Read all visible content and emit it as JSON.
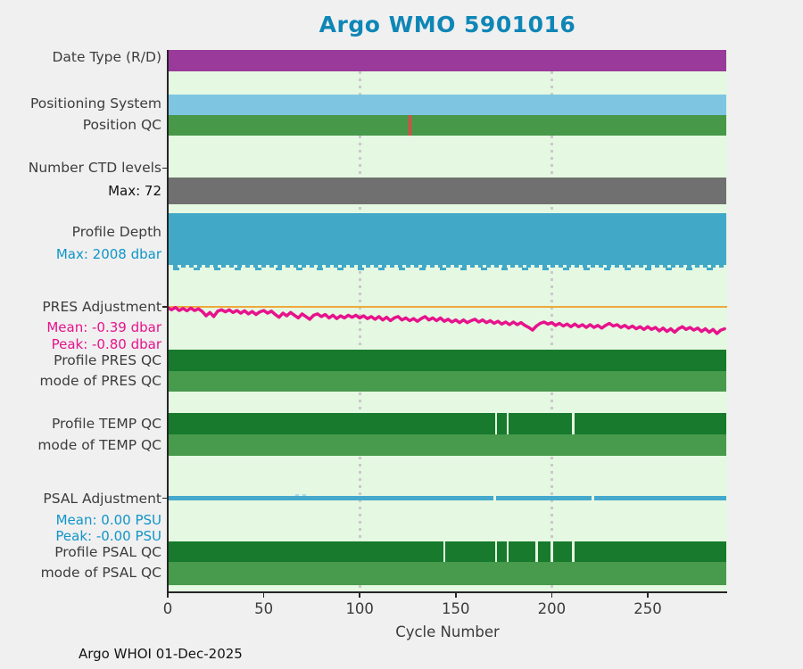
{
  "figure": {
    "title": "Argo WMO 5901016",
    "title_color": "#0e86b6",
    "footer": "Argo WHOI 01-Dec-2025",
    "background": "#f0f0f0",
    "plot_background": "#e5f8e2"
  },
  "chart_data": {
    "type": "bar",
    "subtype": "status-timeline",
    "title": "Argo WMO 5901016",
    "xlabel": "Cycle Number",
    "x_ticks": [
      0,
      50,
      100,
      150,
      200,
      250
    ],
    "x_max": 291,
    "gridlines_x": [
      100,
      200
    ],
    "gridline_color": "#c9c9c9",
    "axis_color": "#262626",
    "rows": [
      {
        "id": "date_type",
        "label": "Date Type (R/D)",
        "type": "bar",
        "color": "#9a3a9a",
        "span": [
          0,
          291
        ]
      },
      {
        "id": "positioning_system",
        "label": "Positioning System",
        "type": "bar",
        "color": "#7ec5e2",
        "span": [
          0,
          291
        ]
      },
      {
        "id": "position_qc",
        "label": "Position QC",
        "type": "bar",
        "color": "#489849",
        "span": [
          0,
          291
        ],
        "flags": [
          {
            "cycle": 126,
            "color": "#ef4049"
          }
        ]
      },
      {
        "id": "ctd_levels",
        "label": "Number CTD levels",
        "max_label": "Max: 72",
        "max_value": 72,
        "type": "bar",
        "color": "#707070",
        "span": [
          0,
          291
        ]
      },
      {
        "id": "profile_depth",
        "label": "Profile Depth",
        "max_label": "Max: 2008 dbar",
        "max_value_dbar": 2008,
        "max_label_color": "#1095c8",
        "type": "bar",
        "color": "#41a8c8",
        "span": [
          0,
          291
        ]
      },
      {
        "id": "pres_adjustment",
        "label": "PRES Adjustment",
        "mean_label": "Mean: -0.39 dbar",
        "peak_label": "Peak: -0.80 dbar",
        "mean_dbar": -0.39,
        "peak_dbar": -0.8,
        "stats_color": "#e6138c",
        "line_color": "#e6138c",
        "zero_line_color": "#efa93a",
        "type": "line",
        "series": [
          [
            0,
            -0.04
          ],
          [
            2,
            -0.1
          ],
          [
            4,
            -0.03
          ],
          [
            6,
            -0.12
          ],
          [
            8,
            -0.06
          ],
          [
            10,
            -0.13
          ],
          [
            12,
            -0.05
          ],
          [
            14,
            -0.12
          ],
          [
            16,
            -0.07
          ],
          [
            18,
            -0.15
          ],
          [
            20,
            -0.28
          ],
          [
            22,
            -0.18
          ],
          [
            24,
            -0.3
          ],
          [
            26,
            -0.14
          ],
          [
            28,
            -0.1
          ],
          [
            30,
            -0.16
          ],
          [
            32,
            -0.1
          ],
          [
            34,
            -0.18
          ],
          [
            36,
            -0.12
          ],
          [
            38,
            -0.2
          ],
          [
            40,
            -0.13
          ],
          [
            42,
            -0.22
          ],
          [
            44,
            -0.15
          ],
          [
            46,
            -0.24
          ],
          [
            48,
            -0.16
          ],
          [
            50,
            -0.12
          ],
          [
            52,
            -0.2
          ],
          [
            54,
            -0.14
          ],
          [
            56,
            -0.24
          ],
          [
            58,
            -0.32
          ],
          [
            60,
            -0.2
          ],
          [
            62,
            -0.28
          ],
          [
            64,
            -0.18
          ],
          [
            66,
            -0.26
          ],
          [
            68,
            -0.34
          ],
          [
            70,
            -0.22
          ],
          [
            72,
            -0.3
          ],
          [
            74,
            -0.38
          ],
          [
            76,
            -0.26
          ],
          [
            78,
            -0.22
          ],
          [
            80,
            -0.3
          ],
          [
            82,
            -0.24
          ],
          [
            84,
            -0.34
          ],
          [
            86,
            -0.26
          ],
          [
            88,
            -0.36
          ],
          [
            90,
            -0.28
          ],
          [
            92,
            -0.34
          ],
          [
            94,
            -0.26
          ],
          [
            96,
            -0.32
          ],
          [
            98,
            -0.26
          ],
          [
            100,
            -0.34
          ],
          [
            102,
            -0.28
          ],
          [
            104,
            -0.36
          ],
          [
            106,
            -0.3
          ],
          [
            108,
            -0.38
          ],
          [
            110,
            -0.3
          ],
          [
            112,
            -0.4
          ],
          [
            114,
            -0.32
          ],
          [
            116,
            -0.42
          ],
          [
            118,
            -0.34
          ],
          [
            120,
            -0.3
          ],
          [
            122,
            -0.4
          ],
          [
            124,
            -0.34
          ],
          [
            126,
            -0.42
          ],
          [
            128,
            -0.36
          ],
          [
            130,
            -0.44
          ],
          [
            132,
            -0.36
          ],
          [
            134,
            -0.3
          ],
          [
            136,
            -0.4
          ],
          [
            138,
            -0.34
          ],
          [
            140,
            -0.42
          ],
          [
            142,
            -0.34
          ],
          [
            144,
            -0.44
          ],
          [
            146,
            -0.38
          ],
          [
            148,
            -0.46
          ],
          [
            150,
            -0.4
          ],
          [
            152,
            -0.48
          ],
          [
            154,
            -0.4
          ],
          [
            156,
            -0.48
          ],
          [
            158,
            -0.42
          ],
          [
            160,
            -0.38
          ],
          [
            162,
            -0.46
          ],
          [
            164,
            -0.4
          ],
          [
            166,
            -0.48
          ],
          [
            168,
            -0.42
          ],
          [
            170,
            -0.5
          ],
          [
            172,
            -0.44
          ],
          [
            174,
            -0.52
          ],
          [
            176,
            -0.46
          ],
          [
            178,
            -0.54
          ],
          [
            180,
            -0.46
          ],
          [
            182,
            -0.54
          ],
          [
            184,
            -0.48
          ],
          [
            186,
            -0.56
          ],
          [
            188,
            -0.62
          ],
          [
            190,
            -0.7
          ],
          [
            192,
            -0.58
          ],
          [
            194,
            -0.5
          ],
          [
            196,
            -0.46
          ],
          [
            198,
            -0.52
          ],
          [
            200,
            -0.48
          ],
          [
            202,
            -0.56
          ],
          [
            204,
            -0.5
          ],
          [
            206,
            -0.58
          ],
          [
            208,
            -0.52
          ],
          [
            210,
            -0.6
          ],
          [
            212,
            -0.52
          ],
          [
            214,
            -0.6
          ],
          [
            216,
            -0.54
          ],
          [
            218,
            -0.62
          ],
          [
            220,
            -0.54
          ],
          [
            222,
            -0.62
          ],
          [
            224,
            -0.56
          ],
          [
            226,
            -0.64
          ],
          [
            228,
            -0.56
          ],
          [
            230,
            -0.5
          ],
          [
            232,
            -0.58
          ],
          [
            234,
            -0.54
          ],
          [
            236,
            -0.62
          ],
          [
            238,
            -0.56
          ],
          [
            240,
            -0.64
          ],
          [
            242,
            -0.58
          ],
          [
            244,
            -0.66
          ],
          [
            246,
            -0.6
          ],
          [
            248,
            -0.68
          ],
          [
            250,
            -0.6
          ],
          [
            252,
            -0.68
          ],
          [
            254,
            -0.62
          ],
          [
            256,
            -0.72
          ],
          [
            258,
            -0.64
          ],
          [
            260,
            -0.74
          ],
          [
            262,
            -0.66
          ],
          [
            264,
            -0.76
          ],
          [
            266,
            -0.66
          ],
          [
            268,
            -0.6
          ],
          [
            270,
            -0.68
          ],
          [
            272,
            -0.62
          ],
          [
            274,
            -0.7
          ],
          [
            276,
            -0.64
          ],
          [
            278,
            -0.74
          ],
          [
            280,
            -0.66
          ],
          [
            282,
            -0.76
          ],
          [
            284,
            -0.68
          ],
          [
            286,
            -0.8
          ],
          [
            288,
            -0.7
          ],
          [
            290,
            -0.66
          ]
        ]
      },
      {
        "id": "profile_pres_qc",
        "label": "Profile PRES QC",
        "type": "bar",
        "color": "#177a2d",
        "span": [
          0,
          291
        ],
        "gaps": []
      },
      {
        "id": "mode_pres_qc",
        "label": "mode of PRES QC",
        "type": "bar",
        "color": "#489a4c",
        "span": [
          0,
          291
        ]
      },
      {
        "id": "profile_temp_qc",
        "label": "Profile TEMP QC",
        "type": "bar",
        "color": "#177a2d",
        "span": [
          0,
          291
        ],
        "gaps": [
          171,
          177,
          211
        ]
      },
      {
        "id": "mode_temp_qc",
        "label": "mode of TEMP QC",
        "type": "bar",
        "color": "#489a4c",
        "span": [
          0,
          291
        ]
      },
      {
        "id": "psal_adjustment",
        "label": "PSAL Adjustment",
        "mean_label": "Mean: 0.00 PSU",
        "peak_label": "Peak: -0.00 PSU",
        "mean_psu": 0.0,
        "peak_psu": -0.0,
        "stats_color": "#1095c8",
        "line_color": "#44a9cc",
        "type": "flatline",
        "value": 0,
        "span": [
          0,
          291
        ],
        "gaps": [
          170,
          221
        ],
        "top_marks": [
          67,
          71
        ]
      },
      {
        "id": "profile_psal_qc",
        "label": "Profile PSAL QC",
        "type": "bar",
        "color": "#177a2d",
        "span": [
          0,
          291
        ],
        "gaps": [
          144,
          171,
          177,
          192,
          200,
          211
        ]
      },
      {
        "id": "mode_psal_qc",
        "label": "mode of PSAL QC",
        "type": "bar",
        "color": "#489a4c",
        "span": [
          0,
          291
        ]
      }
    ]
  }
}
